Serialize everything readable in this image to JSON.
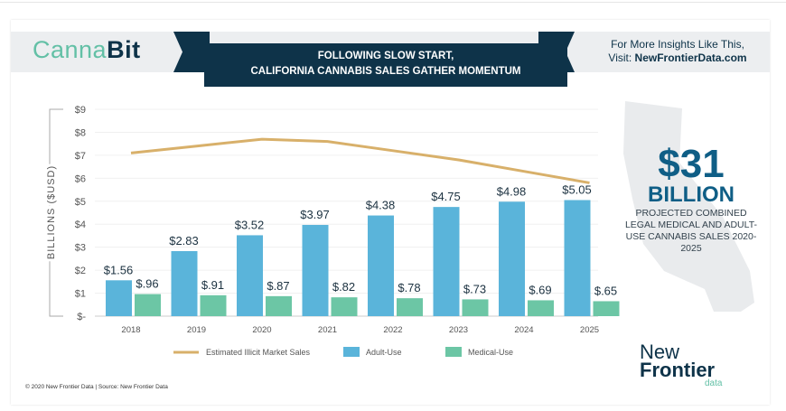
{
  "header": {
    "logo": "CannaBit",
    "logo_part1": "Canna",
    "logo_part2": "Bit",
    "title_line1": "FOLLOWING SLOW START,",
    "title_line2": "CALIFORNIA CANNABIS SALES GATHER MOMENTUM",
    "insights_line1": "For More Insights Like This,",
    "insights_prefix": "Visit: ",
    "insights_link": "NewFrontierData.com"
  },
  "callout": {
    "amount": "$31",
    "unit": "BILLION",
    "description": "PROJECTED COMBINED LEGAL MEDICAL AND ADULT-USE CANNABIS SALES 2020-2025"
  },
  "brand": {
    "line1": "New",
    "line2": "Frontier",
    "line3": "data"
  },
  "footer": {
    "copyright": "© 2020 New Frontier Data | Source: New Frontier Data"
  },
  "colors": {
    "adult": "#5ab4da",
    "medical": "#6cc6a5",
    "illicit": "#d8b06a",
    "navy": "#0e3349"
  },
  "chart_data": {
    "type": "bar",
    "ylabel": "BILLIONS ($USD)",
    "ylim": [
      0,
      9
    ],
    "yticks": [
      "$-",
      "$1",
      "$2",
      "$3",
      "$4",
      "$5",
      "$6",
      "$7",
      "$8",
      "$9"
    ],
    "grid": true,
    "legend_placement": "bottom",
    "categories": [
      "2018",
      "2019",
      "2020",
      "2021",
      "2022",
      "2023",
      "2024",
      "2025"
    ],
    "series": [
      {
        "name": "Adult-Use",
        "type": "bar",
        "values": [
          1.56,
          2.83,
          3.52,
          3.97,
          4.38,
          4.75,
          4.98,
          5.05
        ],
        "labels": [
          "$1.56",
          "$2.83",
          "$3.52",
          "$3.97",
          "$4.38",
          "$4.75",
          "$4.98",
          "$5.05"
        ]
      },
      {
        "name": "Medical-Use",
        "type": "bar",
        "values": [
          0.96,
          0.91,
          0.87,
          0.82,
          0.78,
          0.73,
          0.69,
          0.65
        ],
        "labels": [
          "$.96",
          "$.91",
          "$.87",
          "$.82",
          "$.78",
          "$.73",
          "$.69",
          "$.65"
        ]
      },
      {
        "name": "Estimated Illicit Market Sales",
        "type": "line",
        "values": [
          7.1,
          7.4,
          7.7,
          7.6,
          7.2,
          6.8,
          6.3,
          5.8
        ]
      }
    ]
  }
}
